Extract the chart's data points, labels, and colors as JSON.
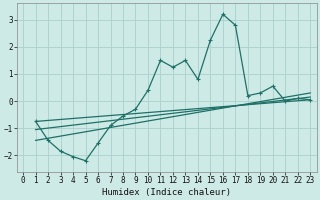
{
  "xlabel": "Humidex (Indice chaleur)",
  "background_color": "#ceeae6",
  "grid_color": "#afd4cf",
  "line_color": "#1e7068",
  "xlim": [
    -0.5,
    23.5
  ],
  "ylim": [
    -2.6,
    3.6
  ],
  "yticks": [
    -2,
    -1,
    0,
    1,
    2,
    3
  ],
  "xticks": [
    0,
    1,
    2,
    3,
    4,
    5,
    6,
    7,
    8,
    9,
    10,
    11,
    12,
    13,
    14,
    15,
    16,
    17,
    18,
    19,
    20,
    21,
    22,
    23
  ],
  "series1_x": [
    1,
    2,
    3,
    4,
    5,
    6,
    7,
    8,
    9,
    10,
    11,
    12,
    13,
    14,
    15,
    16,
    17,
    18,
    19,
    20,
    21,
    22,
    23
  ],
  "series1_y": [
    -0.75,
    -1.45,
    -1.85,
    -2.05,
    -2.2,
    -1.55,
    -0.9,
    -0.55,
    -0.3,
    0.4,
    1.5,
    1.25,
    1.5,
    0.8,
    2.25,
    3.2,
    2.8,
    0.2,
    0.3,
    0.55,
    0.0,
    0.1,
    0.05
  ],
  "series2_x": [
    1,
    23
  ],
  "series2_y": [
    -0.75,
    0.05
  ],
  "series3_x": [
    1,
    23
  ],
  "series3_y": [
    -1.05,
    0.15
  ],
  "series4_x": [
    1,
    23
  ],
  "series4_y": [
    -1.45,
    0.3
  ]
}
